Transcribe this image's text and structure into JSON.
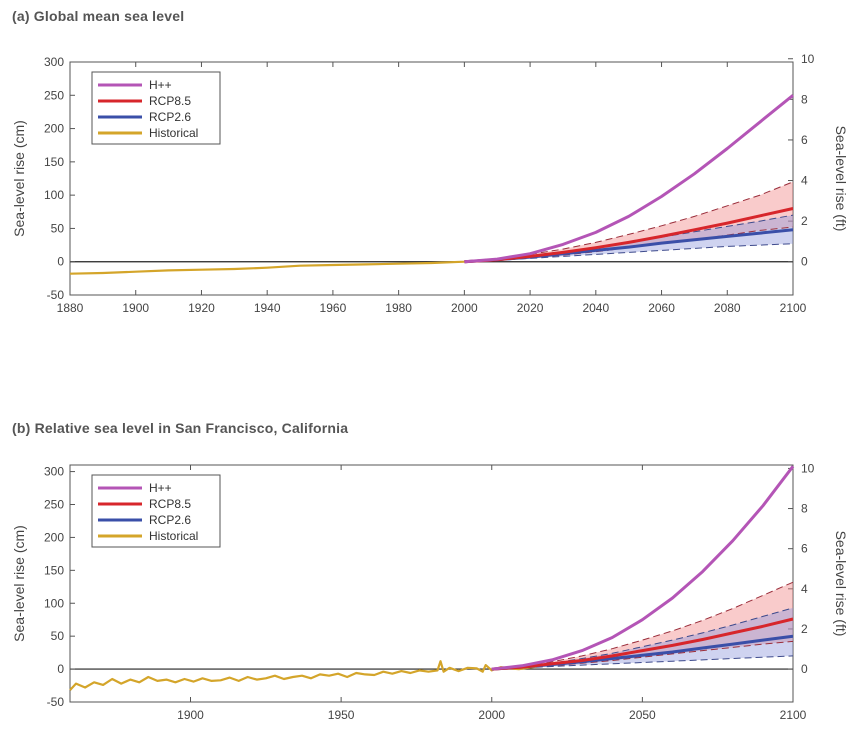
{
  "chart_data": [
    {
      "id": "a",
      "type": "line",
      "title": "(a) Global mean sea level",
      "ylabel": "Sea-level rise (cm)",
      "ylabel_right": "Sea-level rise (ft)",
      "xlim": [
        1880,
        2100
      ],
      "ylim": [
        -50,
        300
      ],
      "ylim_right_ft": [
        -1.64,
        9.84
      ],
      "x_ticks": [
        1880,
        1900,
        1920,
        1940,
        1960,
        1980,
        2000,
        2020,
        2040,
        2060,
        2080,
        2100
      ],
      "y_ticks": [
        -50,
        0,
        50,
        100,
        150,
        200,
        250,
        300
      ],
      "y_ticks_right": [
        0,
        2,
        4,
        6,
        8,
        10
      ],
      "legend": {
        "position": "top-left",
        "entries": [
          {
            "name": "H++",
            "color": "#b455b6"
          },
          {
            "name": "RCP8.5",
            "color": "#d7262b"
          },
          {
            "name": "RCP2.6",
            "color": "#3a4fa8"
          },
          {
            "name": "Historical",
            "color": "#d4a52a"
          }
        ]
      },
      "series": [
        {
          "name": "Historical",
          "color": "#d4a52a",
          "x": [
            1880,
            1890,
            1900,
            1910,
            1920,
            1930,
            1940,
            1950,
            1960,
            1970,
            1980,
            1990,
            2000,
            2005,
            2010,
            2015
          ],
          "y": [
            -18,
            -17,
            -15,
            -13,
            -12,
            -11,
            -9,
            -6,
            -5,
            -4,
            -3,
            -2,
            0,
            2,
            4,
            6
          ]
        },
        {
          "name": "H++",
          "color": "#b455b6",
          "x": [
            2000,
            2010,
            2020,
            2030,
            2040,
            2050,
            2060,
            2070,
            2080,
            2090,
            2100
          ],
          "y": [
            0,
            4,
            12,
            26,
            44,
            68,
            98,
            132,
            170,
            210,
            250
          ]
        },
        {
          "name": "RCP8.5",
          "color": "#d7262b",
          "x": [
            2000,
            2010,
            2020,
            2030,
            2040,
            2050,
            2060,
            2070,
            2080,
            2090,
            2100
          ],
          "y": [
            0,
            3,
            8,
            14,
            21,
            29,
            38,
            48,
            58,
            69,
            80
          ],
          "band_low": [
            0,
            2,
            6,
            10,
            15,
            21,
            27,
            33,
            40,
            47,
            52
          ],
          "band_high": [
            0,
            4,
            11,
            19,
            29,
            41,
            54,
            68,
            84,
            100,
            120
          ]
        },
        {
          "name": "RCP2.6",
          "color": "#3a4fa8",
          "x": [
            2000,
            2010,
            2020,
            2030,
            2040,
            2050,
            2060,
            2070,
            2080,
            2090,
            2100
          ],
          "y": [
            0,
            3,
            7,
            12,
            17,
            22,
            28,
            33,
            38,
            43,
            48
          ],
          "band_low": [
            0,
            2,
            5,
            8,
            11,
            14,
            17,
            20,
            23,
            25,
            27
          ],
          "band_high": [
            0,
            4,
            9,
            15,
            21,
            29,
            37,
            45,
            53,
            61,
            70
          ]
        }
      ]
    },
    {
      "id": "b",
      "type": "line",
      "title": "(b) Relative sea level in San Francisco, California",
      "ylabel": "Sea-level rise (cm)",
      "ylabel_right": "Sea-level rise (ft)",
      "xlim": [
        1860,
        2100
      ],
      "ylim": [
        -50,
        310
      ],
      "ylim_right_ft": [
        -1.64,
        10.17
      ],
      "x_ticks": [
        1900,
        1950,
        2000,
        2050,
        2100
      ],
      "y_ticks": [
        -50,
        0,
        50,
        100,
        150,
        200,
        250,
        300
      ],
      "y_ticks_right": [
        0,
        2,
        4,
        6,
        8,
        10
      ],
      "legend": {
        "position": "top-left",
        "entries": [
          {
            "name": "H++",
            "color": "#b455b6"
          },
          {
            "name": "RCP8.5",
            "color": "#d7262b"
          },
          {
            "name": "RCP2.6",
            "color": "#3a4fa8"
          },
          {
            "name": "Historical",
            "color": "#d4a52a"
          }
        ]
      },
      "series": [
        {
          "name": "Historical",
          "color": "#d4a52a",
          "x": [
            1860,
            1862,
            1865,
            1868,
            1871,
            1874,
            1877,
            1880,
            1883,
            1886,
            1889,
            1892,
            1895,
            1898,
            1901,
            1904,
            1907,
            1910,
            1913,
            1916,
            1919,
            1922,
            1925,
            1928,
            1931,
            1934,
            1937,
            1940,
            1943,
            1946,
            1949,
            1952,
            1955,
            1958,
            1961,
            1964,
            1967,
            1970,
            1973,
            1976,
            1979,
            1982,
            1983,
            1984,
            1986,
            1989,
            1992,
            1995,
            1997,
            1998,
            2000,
            2003,
            2006,
            2009,
            2012,
            2015
          ],
          "y": [
            -32,
            -22,
            -28,
            -20,
            -24,
            -15,
            -22,
            -16,
            -20,
            -12,
            -18,
            -16,
            -20,
            -15,
            -19,
            -14,
            -18,
            -17,
            -13,
            -18,
            -12,
            -16,
            -14,
            -10,
            -15,
            -12,
            -10,
            -14,
            -8,
            -10,
            -7,
            -12,
            -6,
            -8,
            -9,
            -4,
            -7,
            -3,
            -6,
            -2,
            -4,
            -2,
            12,
            -4,
            2,
            -3,
            2,
            1,
            -4,
            6,
            -2,
            3,
            1,
            0,
            2,
            4
          ]
        },
        {
          "name": "H++",
          "color": "#b455b6",
          "x": [
            2000,
            2010,
            2020,
            2030,
            2040,
            2050,
            2060,
            2070,
            2080,
            2090,
            2100
          ],
          "y": [
            0,
            5,
            14,
            28,
            48,
            75,
            108,
            148,
            195,
            248,
            308
          ]
        },
        {
          "name": "RCP8.5",
          "color": "#d7262b",
          "x": [
            2000,
            2010,
            2020,
            2030,
            2040,
            2050,
            2060,
            2070,
            2080,
            2090,
            2100
          ],
          "y": [
            0,
            3,
            8,
            13,
            20,
            28,
            36,
            45,
            55,
            65,
            76
          ],
          "band_low": [
            0,
            2,
            5,
            9,
            13,
            18,
            23,
            28,
            33,
            38,
            42
          ],
          "band_high": [
            0,
            4,
            11,
            20,
            31,
            44,
            58,
            74,
            92,
            112,
            132
          ]
        },
        {
          "name": "RCP2.6",
          "color": "#3a4fa8",
          "x": [
            2000,
            2010,
            2020,
            2030,
            2040,
            2050,
            2060,
            2070,
            2080,
            2090,
            2100
          ],
          "y": [
            0,
            3,
            7,
            11,
            16,
            21,
            26,
            32,
            38,
            44,
            50
          ],
          "band_low": [
            0,
            2,
            4,
            6,
            8,
            10,
            12,
            14,
            16,
            18,
            20
          ],
          "band_high": [
            0,
            4,
            9,
            16,
            24,
            34,
            44,
            55,
            67,
            80,
            93
          ]
        }
      ]
    }
  ]
}
